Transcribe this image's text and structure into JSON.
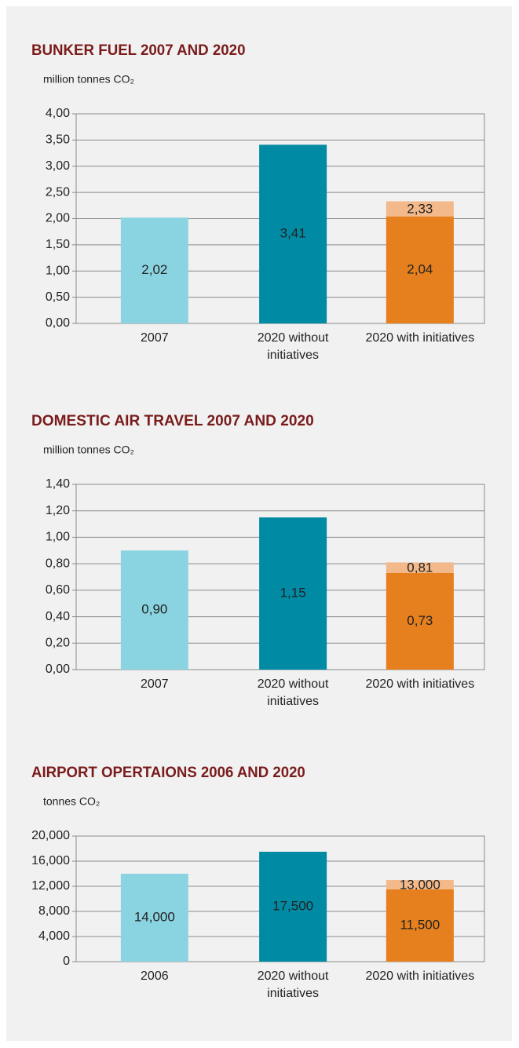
{
  "chart_data": [
    {
      "type": "bar",
      "barmode": "overlay",
      "title": "BUNKER FUEL 2007 AND 2020",
      "y_label": "million tonnes CO₂",
      "categories": [
        "2007",
        "2020 without initiatives",
        "2020 with initiatives"
      ],
      "series": [
        {
          "colors": [
            "#8ad4e1",
            "#008aa3",
            "#e6801e"
          ],
          "values": [
            2.02,
            3.41,
            2.04
          ],
          "value_labels": [
            "2,02",
            "3,41",
            "2,04"
          ]
        },
        {
          "color": "#f3b98b",
          "values": [
            null,
            null,
            2.33
          ],
          "value_labels": [
            null,
            null,
            "2,33"
          ]
        }
      ],
      "ylim": [
        0,
        4
      ],
      "yticks": [
        {
          "value": 0,
          "label": "0,00"
        },
        {
          "value": 0.5,
          "label": "0,50"
        },
        {
          "value": 1,
          "label": "1,00"
        },
        {
          "value": 1.5,
          "label": "1,50"
        },
        {
          "value": 2,
          "label": "2,00"
        },
        {
          "value": 2.5,
          "label": "2,50"
        },
        {
          "value": 3,
          "label": "3,00"
        },
        {
          "value": 3.5,
          "label": "3,50"
        },
        {
          "value": 4,
          "label": "4,00"
        }
      ],
      "grid": true
    },
    {
      "type": "bar",
      "barmode": "overlay",
      "title": "DOMESTIC AIR TRAVEL 2007 AND 2020",
      "y_label": "million tonnes CO₂",
      "categories": [
        "2007",
        "2020 without initiatives",
        "2020 with initiatives"
      ],
      "series": [
        {
          "colors": [
            "#8ad4e1",
            "#008aa3",
            "#e6801e"
          ],
          "values": [
            0.9,
            1.15,
            0.73
          ],
          "value_labels": [
            "0,90",
            "1,15",
            "0,73"
          ]
        },
        {
          "color": "#f3b98b",
          "values": [
            null,
            null,
            0.81
          ],
          "value_labels": [
            null,
            null,
            "0,81"
          ]
        }
      ],
      "ylim": [
        0,
        1.4
      ],
      "yticks": [
        {
          "value": 0,
          "label": "0,00"
        },
        {
          "value": 0.2,
          "label": "0,20"
        },
        {
          "value": 0.4,
          "label": "0,40"
        },
        {
          "value": 0.6,
          "label": "0,60"
        },
        {
          "value": 0.8,
          "label": "0,80"
        },
        {
          "value": 1,
          "label": "1,00"
        },
        {
          "value": 1.2,
          "label": "1,20"
        },
        {
          "value": 1.4,
          "label": "1,40"
        }
      ],
      "grid": true
    },
    {
      "type": "bar",
      "barmode": "overlay",
      "title": "AIRPORT OPERTAIONS 2006 AND 2020",
      "y_label": "tonnes CO₂",
      "categories": [
        "2006",
        "2020 without initiatives",
        "2020 with initiatives"
      ],
      "series": [
        {
          "colors": [
            "#8ad4e1",
            "#008aa3",
            "#e6801e"
          ],
          "values": [
            14000,
            17500,
            11500
          ],
          "value_labels": [
            "14,000",
            "17,500",
            "11,500"
          ]
        },
        {
          "color": "#f3b98b",
          "values": [
            null,
            null,
            13000
          ],
          "value_labels": [
            null,
            null,
            "13,000"
          ]
        }
      ],
      "ylim": [
        0,
        20000
      ],
      "yticks": [
        0,
        {
          "value": 4000,
          "label": "4,000"
        },
        {
          "value": 8000,
          "label": "8,000"
        },
        {
          "value": 12000,
          "label": "12,000"
        },
        {
          "value": 16000,
          "label": "16,000"
        },
        {
          "value": 20000,
          "label": "20,000"
        }
      ],
      "grid": true
    }
  ]
}
